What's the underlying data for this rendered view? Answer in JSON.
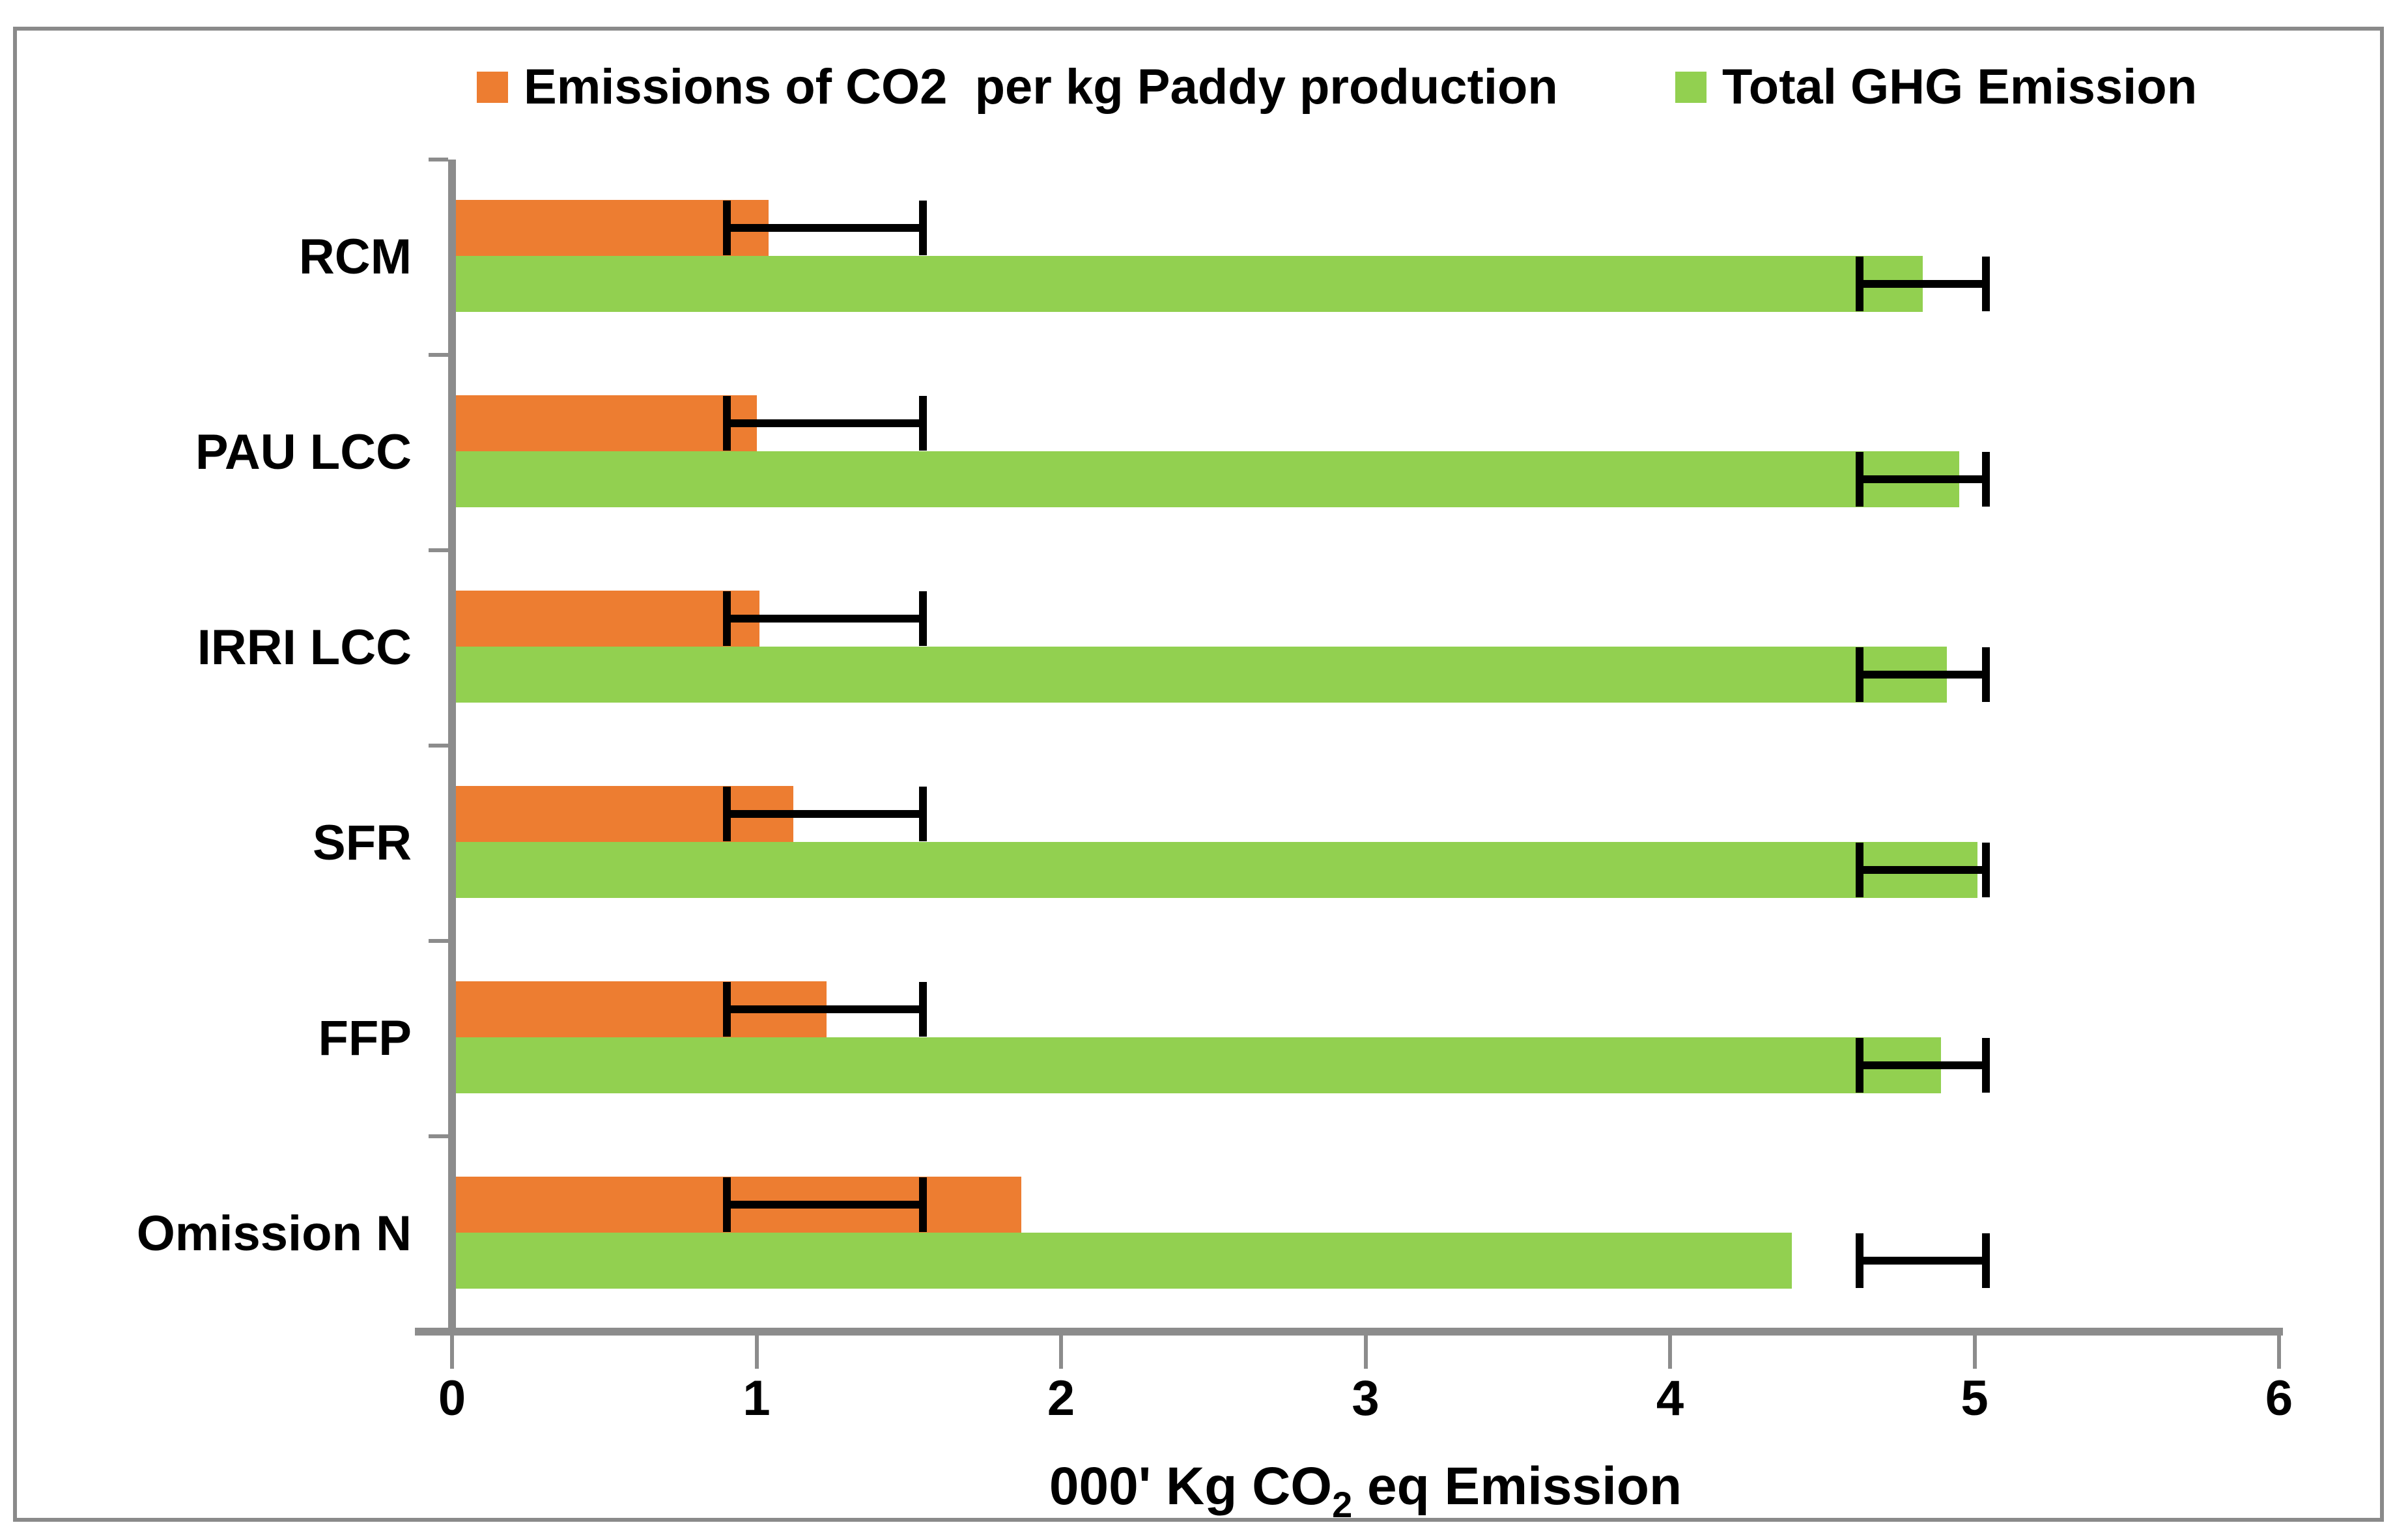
{
  "chart_data": {
    "type": "bar",
    "orientation": "horizontal",
    "title": "",
    "categories": [
      "RCM",
      "PAU LCC",
      "IRRI LCC",
      "SFR",
      "FFP",
      "Omission N"
    ],
    "series": [
      {
        "name": "Emissions of CO2  per kg Paddy production",
        "color": "#ED7D31",
        "values": [
          1.04,
          1.0,
          1.01,
          1.12,
          1.23,
          1.87
        ],
        "error_bar": {
          "min": 0.89,
          "max": 1.56
        }
      },
      {
        "name": "Total GHG Emission",
        "color": "#92D050",
        "values": [
          4.83,
          4.95,
          4.91,
          5.01,
          4.89,
          4.4
        ],
        "error_bar": {
          "min": 4.61,
          "max": 5.05
        }
      }
    ],
    "xlabel_parts": {
      "prefix": "000' Kg CO",
      "sub": "2",
      "suffix": " eq Emission"
    },
    "x_ticks": [
      0,
      1,
      2,
      3,
      4,
      5,
      6
    ],
    "xlim": [
      0,
      6
    ],
    "grid": false,
    "legend_position": "top-center"
  },
  "colors": {
    "background": "#FFFFFF",
    "text": "#000000",
    "axis": "#8C8C8C",
    "frame_border": "#8A8A8A",
    "error_bar": "#000000"
  }
}
